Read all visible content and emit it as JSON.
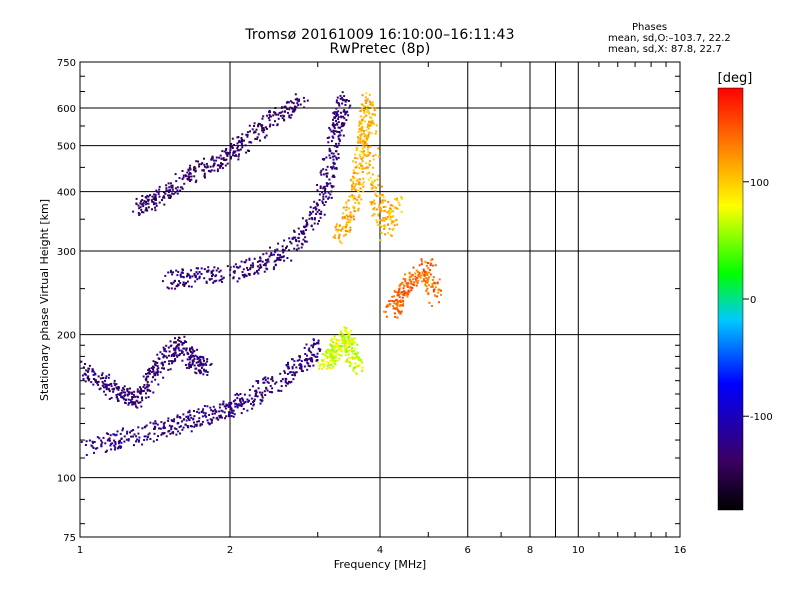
{
  "header": {
    "title_line1": "Tromsø 20161009 16:10:00–16:11:43",
    "title_line2": "RwPretec (8p)"
  },
  "info": {
    "heading": "Phases",
    "line1": "mean, sd,O:–103.7, 22.2",
    "line2": "mean, sd,X:  87.8, 22.7"
  },
  "chart_data": {
    "type": "scatter",
    "title": "Tromsø 20161009 16:10:00–16:11:43",
    "subtitle": "RwPretec (8p)",
    "xlabel": "Frequency [MHz]",
    "ylabel": "Stationary phase Virtual Height [km]",
    "x_scale": "log",
    "y_scale": "log",
    "xlim": [
      1,
      16
    ],
    "ylim": [
      75,
      750
    ],
    "x_ticks": [
      1,
      2,
      4,
      6,
      8,
      10,
      16
    ],
    "x_tick_labels": [
      "1",
      "2",
      "4",
      "6",
      "8",
      "10",
      "16"
    ],
    "y_ticks": [
      75,
      100,
      200,
      300,
      400,
      500,
      600,
      750
    ],
    "y_tick_labels": [
      "75",
      "100",
      "200",
      "300",
      "400",
      "500",
      "600",
      "750"
    ],
    "grid": true,
    "colorbar": {
      "label": "[deg]",
      "range": [
        -180,
        180
      ],
      "ticks": [
        100,
        0,
        -100
      ],
      "tick_labels": [
        "100",
        "0",
        "-100"
      ],
      "colors": [
        "#000000",
        "#3b0066",
        "#0000ff",
        "#00c8ff",
        "#00ff00",
        "#ffff00",
        "#ff8000",
        "#ff0000"
      ]
    },
    "series": [
      {
        "name": "",
        "color_phase": -125,
        "description_points": [
          [
            1.0,
            115
          ],
          [
            1.2,
            120
          ],
          [
            1.4,
            125
          ],
          [
            1.6,
            130
          ],
          [
            1.8,
            135
          ],
          [
            2.0,
            140
          ],
          [
            2.2,
            148
          ],
          [
            2.5,
            160
          ],
          [
            2.8,
            175
          ],
          [
            3.0,
            190
          ]
        ]
      },
      {
        "name": "",
        "color_phase": -130,
        "description_points": [
          [
            1.0,
            170
          ],
          [
            1.1,
            160
          ],
          [
            1.2,
            150
          ],
          [
            1.3,
            145
          ],
          [
            1.4,
            165
          ],
          [
            1.5,
            180
          ],
          [
            1.6,
            190
          ],
          [
            1.7,
            175
          ],
          [
            1.8,
            170
          ]
        ]
      },
      {
        "name": "",
        "color_phase": -130,
        "description_points": [
          [
            1.5,
            260
          ],
          [
            1.7,
            265
          ],
          [
            2.0,
            270
          ],
          [
            2.3,
            280
          ],
          [
            2.6,
            300
          ],
          [
            2.9,
            340
          ],
          [
            3.1,
            400
          ],
          [
            3.2,
            480
          ],
          [
            3.3,
            560
          ],
          [
            3.4,
            630
          ]
        ]
      },
      {
        "name": "",
        "color_phase": -135,
        "description_points": [
          [
            1.3,
            370
          ],
          [
            1.4,
            380
          ],
          [
            1.6,
            420
          ],
          [
            1.8,
            450
          ],
          [
            2.0,
            480
          ],
          [
            2.2,
            520
          ],
          [
            2.5,
            580
          ],
          [
            2.8,
            620
          ]
        ]
      },
      {
        "name": "",
        "color_phase": 110,
        "description_points": [
          [
            3.3,
            320
          ],
          [
            3.5,
            360
          ],
          [
            3.6,
            420
          ],
          [
            3.7,
            480
          ],
          [
            3.75,
            550
          ],
          [
            3.8,
            620
          ],
          [
            3.9,
            400
          ],
          [
            4.1,
            330
          ],
          [
            4.3,
            380
          ]
        ]
      },
      {
        "name": "",
        "color_phase": 70,
        "description_points": [
          [
            3.1,
            175
          ],
          [
            3.2,
            180
          ],
          [
            3.3,
            190
          ],
          [
            3.4,
            200
          ],
          [
            3.5,
            185
          ],
          [
            3.6,
            170
          ]
        ]
      },
      {
        "name": "",
        "color_phase": 140,
        "description_points": [
          [
            4.2,
            220
          ],
          [
            4.4,
            240
          ],
          [
            4.6,
            260
          ],
          [
            5.0,
            280
          ],
          [
            5.2,
            230
          ]
        ]
      }
    ]
  }
}
